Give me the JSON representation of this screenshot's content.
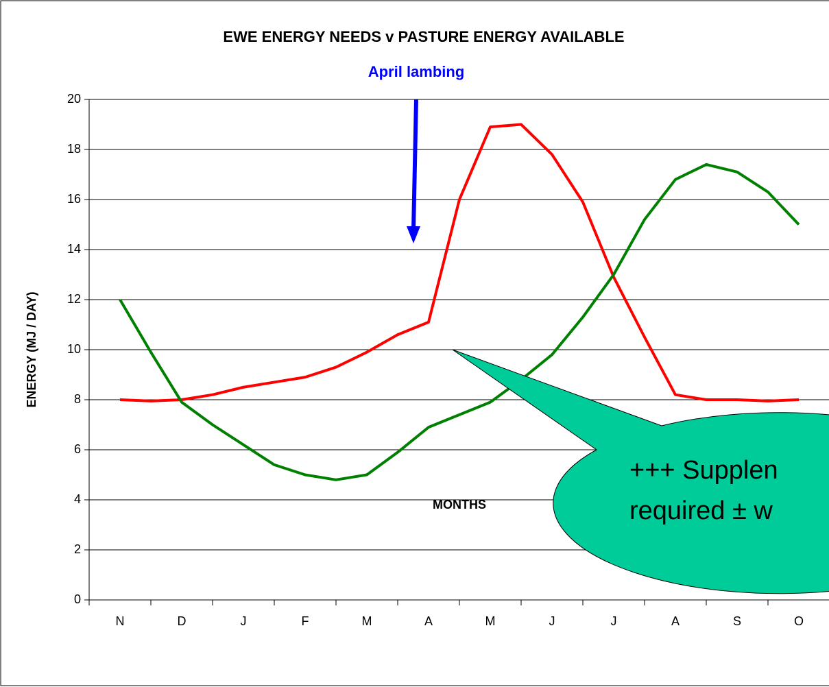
{
  "chart_data": {
    "type": "line",
    "title": "EWE ENERGY NEEDS  v  PASTURE ENERGY AVAILABLE",
    "annotations": [
      "April lambing",
      "+++ Supplen",
      "required ± w"
    ],
    "ylabel": "ENERGY (MJ / DAY)",
    "xlabel": "MONTHS",
    "categories": [
      "N",
      "D",
      "J",
      "F",
      "M",
      "A",
      "M",
      "J",
      "J",
      "A",
      "S",
      "O"
    ],
    "x": [
      0,
      0.5,
      1,
      1.5,
      2,
      2.5,
      3,
      3.5,
      4,
      4.5,
      5,
      5.5,
      6,
      6.5,
      7,
      7.5,
      8,
      8.5,
      9,
      9.5,
      10,
      10.5,
      11
    ],
    "series": [
      {
        "color": "#ff0000",
        "values": [
          8.0,
          7.95,
          8.0,
          8.2,
          8.5,
          8.7,
          8.9,
          9.3,
          9.9,
          10.6,
          11.1,
          16.0,
          18.9,
          19.0,
          17.8,
          15.9,
          12.9,
          10.5,
          8.2,
          8.0,
          8.0,
          7.95,
          8.0
        ]
      },
      {
        "color": "#008000",
        "values": [
          12.0,
          9.9,
          7.9,
          7.0,
          6.2,
          5.4,
          5.0,
          4.8,
          5.0,
          5.9,
          6.9,
          7.4,
          7.9,
          8.8,
          9.8,
          11.3,
          13.0,
          15.2,
          16.8,
          17.4,
          17.1,
          16.3,
          15.0
        ]
      }
    ],
    "ylim": [
      0,
      20
    ],
    "yticks": [
      0,
      2,
      4,
      6,
      8,
      10,
      12,
      14,
      16,
      18,
      20
    ],
    "grid": true
  }
}
